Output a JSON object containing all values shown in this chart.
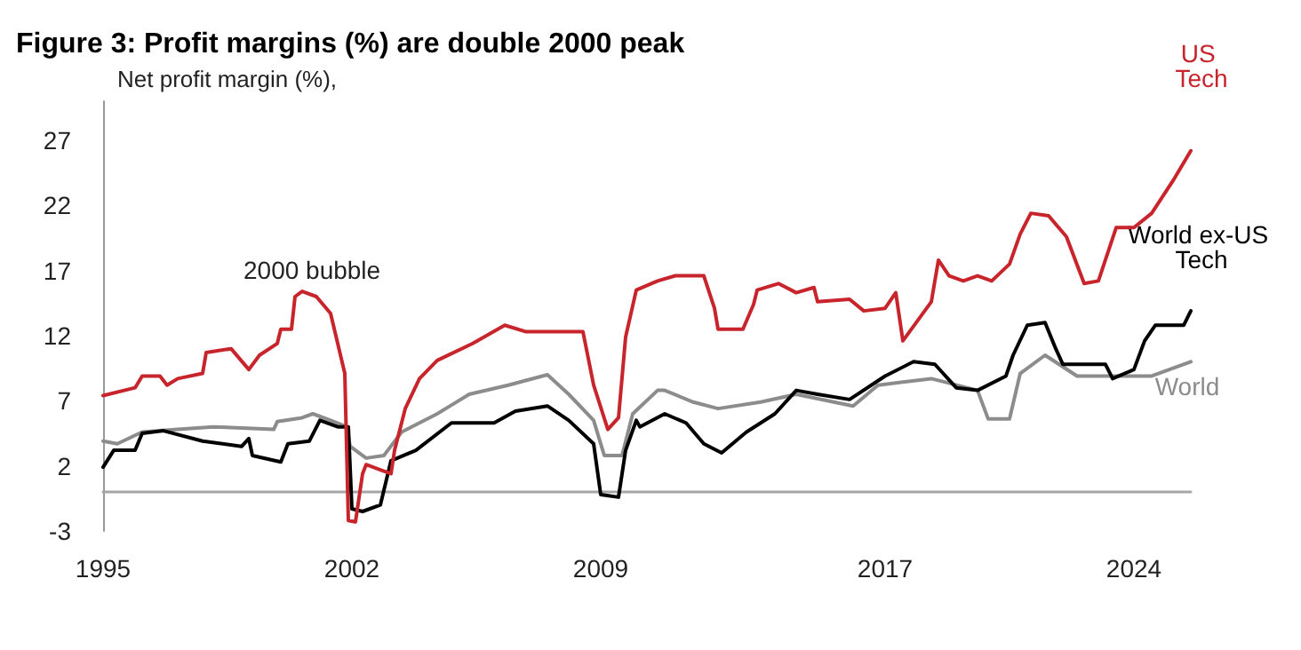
{
  "chart_data": {
    "type": "line",
    "title": "Figure 3: Profit margins (%) are double 2000 peak",
    "ylabel": "Net profit margin (%),",
    "xlim": [
      1995,
      2025.6
    ],
    "xticks": [
      1995,
      2002,
      2009,
      2017,
      2024
    ],
    "ylim": [
      -3,
      30
    ],
    "yticks": [
      -3,
      2,
      7,
      12,
      17,
      22,
      27
    ],
    "grid": false,
    "legend": false,
    "marker": "none",
    "line_style": "solid",
    "annotations": [
      "2000 bubble"
    ],
    "series": [
      {
        "name": "World",
        "color": "#8c8c8c",
        "x": [
          1995,
          1995.4,
          1996.1,
          1997.1,
          1998.1,
          1999.8,
          1999.9,
          2000.6,
          2000.9,
          2001.4,
          2001.85,
          2001.95,
          2002.4,
          2002.9,
          2003.4,
          2004.4,
          2005.3,
          2006.4,
          2007.5,
          2008.1,
          2008.8,
          2009.1,
          2009.6,
          2009.9,
          2010.6,
          2010.8,
          2011.6,
          2012.3,
          2013.5,
          2014.5,
          2016.1,
          2016.8,
          2018.3,
          2019.6,
          2019.9,
          2020.5,
          2020.8,
          2021.5,
          2022.4,
          2023.5,
          2024.5,
          2025.6
        ],
        "values": [
          3.9,
          3.7,
          4.6,
          4.8,
          5.0,
          4.8,
          5.4,
          5.7,
          6.0,
          5.5,
          5.0,
          3.5,
          2.6,
          2.8,
          4.6,
          6.0,
          7.5,
          8.2,
          9.0,
          7.5,
          5.5,
          2.8,
          2.8,
          6.0,
          7.8,
          7.8,
          6.9,
          6.4,
          6.9,
          7.5,
          6.6,
          8.2,
          8.7,
          7.8,
          5.6,
          5.6,
          9.1,
          10.5,
          8.9,
          8.9,
          8.9,
          10.0
        ]
      },
      {
        "name": "World ex-US Tech",
        "color": "#000000",
        "x": [
          1995,
          1995.3,
          1995.9,
          1996.1,
          1996.7,
          1997.8,
          1998.9,
          1999.1,
          1999.2,
          2000.0,
          2000.2,
          2000.8,
          2001.1,
          2001.6,
          2001.9,
          2002.0,
          2002.3,
          2002.8,
          2003.1,
          2003.8,
          2004.8,
          2006.0,
          2006.6,
          2007.5,
          2008.1,
          2008.8,
          2009.0,
          2009.5,
          2009.7,
          2010.0,
          2010.1,
          2010.8,
          2011.4,
          2011.9,
          2012.4,
          2013.1,
          2013.9,
          2014.5,
          2015.1,
          2016.0,
          2017.0,
          2017.8,
          2018.4,
          2019.0,
          2019.6,
          2020.4,
          2020.6,
          2021.0,
          2021.5,
          2021.8,
          2022.0,
          2023.2,
          2023.4,
          2024.0,
          2024.3,
          2024.6,
          2025.4,
          2025.6
        ],
        "values": [
          1.9,
          3.2,
          3.2,
          4.5,
          4.7,
          3.9,
          3.5,
          4.1,
          2.8,
          2.3,
          3.7,
          3.9,
          5.5,
          5.0,
          5.0,
          -1.3,
          -1.5,
          -1.0,
          2.4,
          3.2,
          5.3,
          5.3,
          6.2,
          6.6,
          5.5,
          3.7,
          -0.2,
          -0.4,
          3.2,
          5.5,
          5.0,
          6.0,
          5.3,
          3.7,
          3.0,
          4.6,
          6.0,
          7.8,
          7.5,
          7.1,
          8.9,
          10.0,
          9.8,
          8.0,
          7.8,
          8.9,
          10.5,
          12.8,
          13.0,
          11.0,
          9.8,
          9.8,
          8.7,
          9.4,
          11.6,
          12.8,
          12.8,
          13.9
        ]
      },
      {
        "name": "US Tech",
        "color": "#c8242b",
        "x": [
          1995,
          1995.9,
          1996.1,
          1996.6,
          1996.8,
          1997.1,
          1997.8,
          1997.9,
          1998.6,
          1999.1,
          1999.4,
          1999.9,
          2000.0,
          2000.3,
          2000.4,
          2000.6,
          2001.0,
          2001.4,
          2001.6,
          2001.8,
          2001.9,
          2002.1,
          2002.3,
          2002.4,
          2002.9,
          2003.1,
          2003.2,
          2003.5,
          2003.9,
          2004.4,
          2005.4,
          2006.3,
          2006.9,
          2008.1,
          2008.5,
          2008.8,
          2009.2,
          2009.5,
          2009.7,
          2010.0,
          2010.6,
          2011.1,
          2011.9,
          2012.2,
          2012.3,
          2013.0,
          2013.3,
          2013.4,
          2014.0,
          2014.5,
          2015.0,
          2015.1,
          2016.0,
          2016.4,
          2017.0,
          2017.3,
          2017.5,
          2018.3,
          2018.5,
          2018.8,
          2019.2,
          2019.6,
          2020.0,
          2020.5,
          2020.8,
          2021.1,
          2021.6,
          2022.1,
          2022.6,
          2023.0,
          2023.5,
          2024.0,
          2024.5,
          2025.1,
          2025.6
        ],
        "values": [
          7.4,
          8.0,
          8.9,
          8.9,
          8.2,
          8.7,
          9.1,
          10.7,
          11.0,
          9.4,
          10.5,
          11.4,
          12.5,
          12.5,
          15.0,
          15.4,
          15.0,
          13.7,
          11.4,
          9.1,
          -2.2,
          -2.3,
          1.4,
          2.1,
          1.6,
          1.4,
          3.2,
          6.4,
          8.7,
          10.1,
          11.4,
          12.8,
          12.3,
          12.3,
          12.3,
          8.2,
          4.8,
          5.7,
          11.9,
          15.5,
          16.2,
          16.6,
          16.6,
          14.1,
          12.5,
          12.5,
          14.4,
          15.5,
          16.0,
          15.3,
          15.7,
          14.6,
          14.8,
          13.9,
          14.1,
          15.3,
          11.6,
          14.6,
          17.8,
          16.6,
          16.2,
          16.6,
          16.2,
          17.5,
          19.8,
          21.4,
          21.2,
          19.6,
          16.0,
          16.2,
          20.3,
          20.3,
          21.4,
          23.9,
          26.2
        ]
      }
    ]
  }
}
